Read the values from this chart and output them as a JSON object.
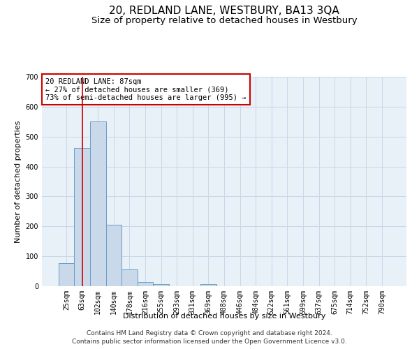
{
  "title": "20, REDLAND LANE, WESTBURY, BA13 3QA",
  "subtitle": "Size of property relative to detached houses in Westbury",
  "xlabel": "Distribution of detached houses by size in Westbury",
  "ylabel": "Number of detached properties",
  "categories": [
    "25sqm",
    "63sqm",
    "102sqm",
    "140sqm",
    "178sqm",
    "216sqm",
    "255sqm",
    "293sqm",
    "331sqm",
    "369sqm",
    "408sqm",
    "446sqm",
    "484sqm",
    "522sqm",
    "561sqm",
    "599sqm",
    "637sqm",
    "675sqm",
    "714sqm",
    "752sqm",
    "790sqm"
  ],
  "values": [
    78,
    463,
    550,
    205,
    55,
    13,
    7,
    0,
    0,
    8,
    0,
    0,
    0,
    0,
    0,
    0,
    0,
    0,
    0,
    0,
    0
  ],
  "bar_color": "#c9d9ea",
  "bar_edge_color": "#6a9ec8",
  "red_line_x": 1.0,
  "annotation_line1": "20 REDLAND LANE: 87sqm",
  "annotation_line2": "← 27% of detached houses are smaller (369)",
  "annotation_line3": "73% of semi-detached houses are larger (995) →",
  "annotation_box_color": "#ffffff",
  "annotation_box_edge_color": "#cc0000",
  "footer_line1": "Contains HM Land Registry data © Crown copyright and database right 2024.",
  "footer_line2": "Contains public sector information licensed under the Open Government Licence v3.0.",
  "ylim": [
    0,
    700
  ],
  "yticks": [
    0,
    100,
    200,
    300,
    400,
    500,
    600,
    700
  ],
  "grid_color": "#c8d8e8",
  "background_color": "#e8f0f8",
  "title_fontsize": 11,
  "subtitle_fontsize": 9.5,
  "axis_label_fontsize": 8,
  "tick_fontsize": 7,
  "footer_fontsize": 6.5
}
